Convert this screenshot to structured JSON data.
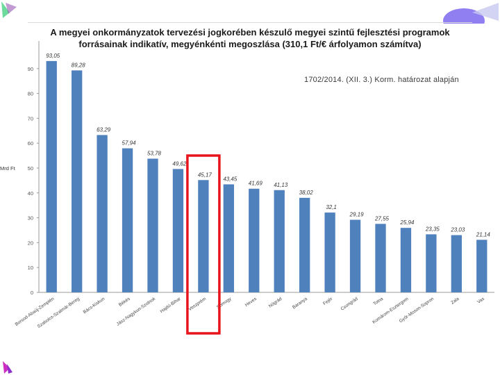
{
  "slide": {
    "title_line1": "A megyei onkormányzatok tervezési jogkorében készulő megyei szintű fejlesztési programok",
    "title_line2": "forrásainak indikatív, megyénkénti megoszlása (310,1 Ft/€ árfolyamon számítva)",
    "subtitle": "1702/2014. (XII. 3.) Korm. határozat alapján"
  },
  "colors": {
    "bar": "#4f81bd",
    "highlight": "#e8141c"
  },
  "chart_data": {
    "type": "bar",
    "title": "A megyei onkormányzatok tervezési jogkorében készulő megyei szintű fejlesztési programok forrásainak indikatív, megyénkénti megoszlása (310,1 Ft/€ árfolyamon számítva)",
    "ylabel": "Mrd Ft",
    "ylim": [
      0,
      100
    ],
    "yticks": [
      0,
      10,
      20,
      30,
      40,
      50,
      60,
      70,
      80,
      90
    ],
    "grid": false,
    "categories": [
      "Borsod-Abaúj-Zemplén",
      "Szabolcs-Szatmár-Bereg",
      "Bács-Kiskun",
      "Békés",
      "Jász-Nagykun-Szolnok",
      "Hajdú-Bihar",
      "Veszprém",
      "Somogy",
      "Heves",
      "Nógrád",
      "Baranya",
      "Fejér",
      "Csongrád",
      "Tolna",
      "Komárom-Esztergom",
      "Győr-Moson-Sopron",
      "Zala",
      "Vas"
    ],
    "values": [
      93.05,
      89.28,
      63.29,
      57.94,
      53.78,
      49.62,
      45.17,
      43.45,
      41.69,
      41.13,
      38.02,
      32.1,
      29.19,
      27.55,
      25.94,
      23.35,
      23.03,
      21.14
    ],
    "value_labels": [
      "93,05",
      "89,28",
      "63,29",
      "57,94",
      "53,78",
      "49,62",
      "45,17",
      "43,45",
      "41,69",
      "41,13",
      "38,02",
      "32,1",
      "29,19",
      "27,55",
      "25,94",
      "23,35",
      "23,03",
      "21,14"
    ],
    "highlighted_category": "Veszprém"
  }
}
